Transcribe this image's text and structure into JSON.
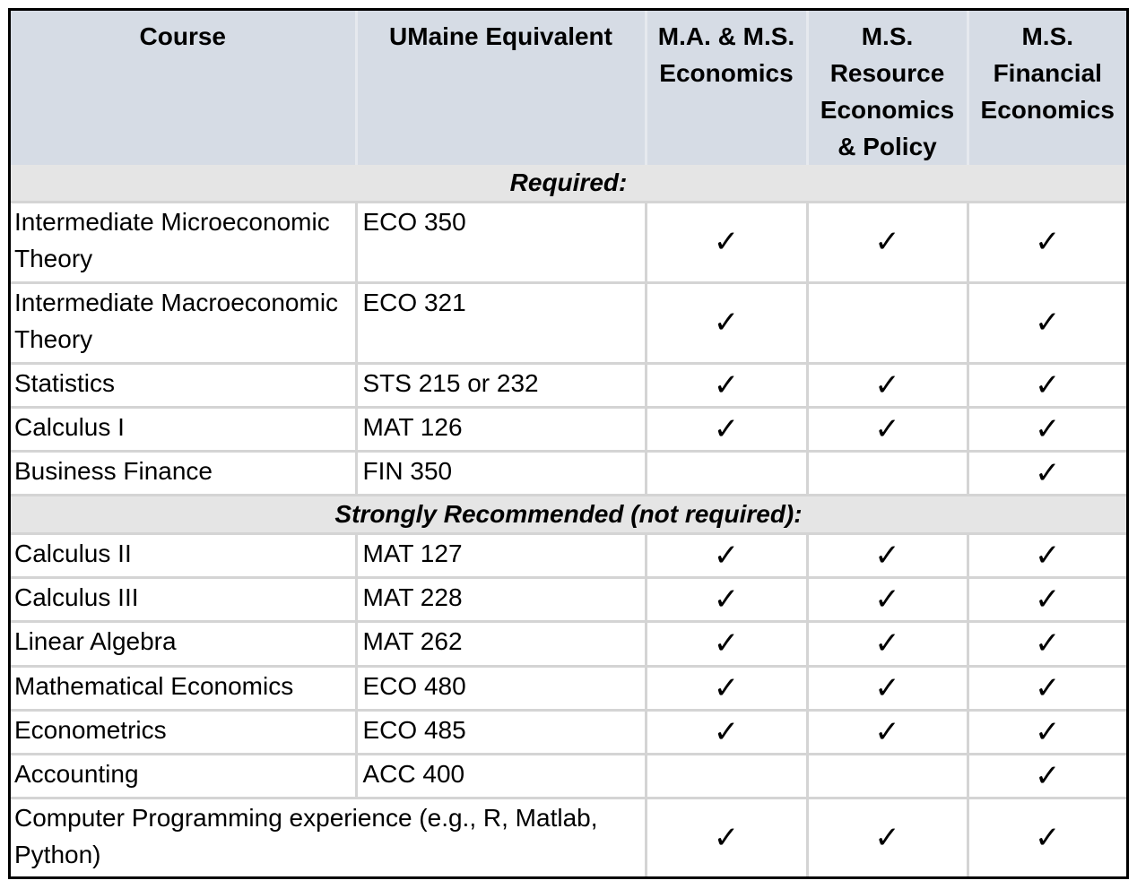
{
  "headers": {
    "course": "Course",
    "equivalent": "UMaine Equivalent",
    "program1": "M.A. & M.S. Economics",
    "program2": "M.S. Resource Economics & Policy",
    "program3": "M.S. Financial Economics"
  },
  "sections": {
    "required": "Required:",
    "recommended": "Strongly Recommended (not required):"
  },
  "check_symbol": "✓",
  "required_rows": [
    {
      "course": "Intermediate Microeconomic Theory",
      "equivalent": "ECO 350",
      "checks": [
        true,
        true,
        true
      ]
    },
    {
      "course": "Intermediate Macroeconomic Theory",
      "equivalent": "ECO 321",
      "checks": [
        true,
        false,
        true
      ]
    },
    {
      "course": "Statistics",
      "equivalent": "STS 215 or 232",
      "checks": [
        true,
        true,
        true
      ]
    },
    {
      "course": "Calculus I",
      "equivalent": "MAT 126",
      "checks": [
        true,
        true,
        true
      ]
    },
    {
      "course": "Business Finance",
      "equivalent": "FIN 350",
      "checks": [
        false,
        false,
        true
      ]
    }
  ],
  "recommended_rows": [
    {
      "course": "Calculus II",
      "equivalent": "MAT 127",
      "checks": [
        true,
        true,
        true
      ]
    },
    {
      "course": "Calculus III",
      "equivalent": "MAT 228",
      "checks": [
        true,
        true,
        true
      ]
    },
    {
      "course": "Linear Algebra",
      "equivalent": "MAT 262",
      "checks": [
        true,
        true,
        true
      ]
    },
    {
      "course": "Mathematical Economics",
      "equivalent": "ECO 480",
      "checks": [
        true,
        true,
        true
      ]
    },
    {
      "course": "Econometrics",
      "equivalent": "ECO 485",
      "checks": [
        true,
        true,
        true
      ]
    },
    {
      "course": "Accounting",
      "equivalent": "ACC 400",
      "checks": [
        false,
        false,
        true
      ]
    }
  ],
  "final_row": {
    "course": "Computer Programming experience (e.g., R, Matlab, Python)",
    "checks": [
      true,
      true,
      true
    ]
  }
}
